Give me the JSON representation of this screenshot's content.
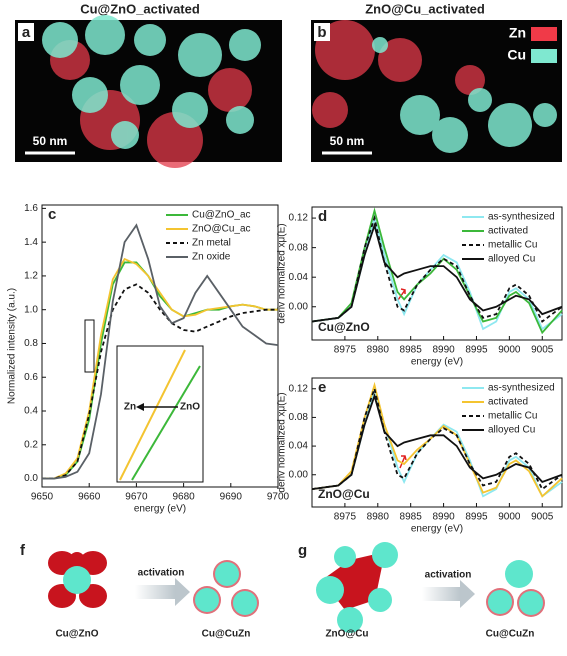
{
  "images": [
    {
      "label": "a",
      "title": "Cu@ZnO_activated",
      "scale_bar": "50 nm"
    },
    {
      "label": "b",
      "title": "ZnO@Cu_activated",
      "scale_bar": "50 nm",
      "legend": [
        {
          "name": "Zn",
          "color": "#f03a48"
        },
        {
          "name": "Cu",
          "color": "#7fe8d0"
        }
      ]
    }
  ],
  "chart_data": [
    {
      "type": "line",
      "panel_label": "c",
      "x_label": "energy (eV)",
      "y_label": "Normalized intensity (a.u.)",
      "x": [
        9650,
        9652.5,
        9655,
        9657.5,
        9660,
        9662.5,
        9665,
        9667.5,
        9670,
        9672.5,
        9675,
        9677.5,
        9680,
        9682.5,
        9685,
        9687.5,
        9690,
        9692.5,
        9695,
        9697.5,
        9700
      ],
      "xlim": [
        9650,
        9700
      ],
      "xticks": [
        9650,
        9660,
        9670,
        9680,
        9690,
        9700
      ],
      "ylim": [
        -0.05,
        1.62
      ],
      "yticks": [
        {
          "value": 0,
          "label": "0.0"
        },
        {
          "value": 0.2,
          "label": "0.2"
        },
        {
          "value": 0.4,
          "label": "0.4"
        },
        {
          "value": 0.6,
          "label": "0.6"
        },
        {
          "value": 0.8,
          "label": "0.8"
        },
        {
          "value": 1,
          "label": "1.0"
        },
        {
          "value": 1.2,
          "label": "1.2"
        },
        {
          "value": 1.4,
          "label": "1.4"
        },
        {
          "value": 1.6,
          "label": "1.6"
        }
      ],
      "inset_labels": [
        "Zn",
        "ZnO"
      ],
      "series": [
        {
          "name": "Cu@ZnO_ac",
          "color": "#3cb83a",
          "style": "solid",
          "values": [
            0,
            0,
            0.02,
            0.1,
            0.35,
            0.8,
            1.15,
            1.28,
            1.28,
            1.2,
            1.08,
            1.0,
            0.96,
            0.98,
            1.0,
            1.0,
            1.02,
            1.03,
            1.02,
            1.0,
            1.0
          ]
        },
        {
          "name": "ZnO@Cu_ac",
          "color": "#f4c430",
          "style": "solid",
          "values": [
            0,
            0,
            0.03,
            0.12,
            0.4,
            0.85,
            1.18,
            1.3,
            1.27,
            1.2,
            1.1,
            1.0,
            0.96,
            0.97,
            1.0,
            1.01,
            1.02,
            1.03,
            1.02,
            1.0,
            1.0
          ]
        },
        {
          "name": "Zn metal",
          "color": "#111111",
          "style": "dashed",
          "values": [
            0,
            0,
            0.02,
            0.1,
            0.38,
            0.75,
            1.0,
            1.12,
            1.15,
            1.1,
            1.0,
            0.92,
            0.88,
            0.87,
            0.9,
            0.93,
            0.96,
            0.98,
            0.99,
            1.0,
            1.0
          ]
        },
        {
          "name": "Zn oxide",
          "color": "#5a6066",
          "style": "solid",
          "values": [
            0,
            0,
            0.01,
            0.04,
            0.15,
            0.5,
            1.05,
            1.4,
            1.5,
            1.3,
            1.02,
            0.92,
            0.95,
            1.1,
            1.2,
            1.1,
            1.0,
            0.9,
            0.85,
            0.8,
            0.79
          ]
        }
      ]
    },
    {
      "type": "line",
      "panel_label": "d",
      "annotation": "Cu@ZnO",
      "x_label": "energy (eV)",
      "y_label": "deriv normalized xμ(E)",
      "x": [
        8970,
        8974,
        8976,
        8978,
        8979.5,
        8981,
        8983,
        8984,
        8986,
        8988,
        8990,
        8992,
        8994,
        8996,
        8998,
        9000,
        9001,
        9003,
        9005,
        9008
      ],
      "xlim": [
        8970,
        9008
      ],
      "xticks": [
        8975,
        8980,
        8985,
        8990,
        8995,
        9000,
        9005
      ],
      "ylim": [
        -0.045,
        0.135
      ],
      "yticks": [
        {
          "value": 0,
          "label": "0.00"
        },
        {
          "value": 0.04,
          "label": "0.04"
        },
        {
          "value": 0.08,
          "label": "0.08"
        },
        {
          "value": 0.12,
          "label": "0.12"
        }
      ],
      "series": [
        {
          "name": "as-synthesized",
          "color": "#8ee8f0",
          "style": "solid",
          "values": [
            -0.02,
            -0.015,
            0.0,
            0.07,
            0.12,
            0.07,
            0.01,
            -0.01,
            0.03,
            0.05,
            0.07,
            0.06,
            0.02,
            -0.03,
            -0.02,
            0.02,
            0.025,
            0.01,
            -0.03,
            -0.01
          ]
        },
        {
          "name": "activated",
          "color": "#3cb83a",
          "style": "solid",
          "values": [
            -0.02,
            -0.015,
            0.005,
            0.08,
            0.13,
            0.08,
            0.02,
            0.01,
            0.03,
            0.045,
            0.065,
            0.05,
            0.015,
            -0.02,
            -0.015,
            0.015,
            0.02,
            0.005,
            -0.035,
            -0.005
          ]
        },
        {
          "name": "metallic Cu",
          "color": "#111111",
          "style": "dashed",
          "values": [
            -0.02,
            -0.015,
            0.0,
            0.08,
            0.12,
            0.06,
            0.0,
            -0.005,
            0.03,
            0.05,
            0.065,
            0.055,
            0.015,
            -0.015,
            -0.01,
            0.025,
            0.03,
            0.015,
            -0.02,
            0.0
          ]
        },
        {
          "name": "alloyed Cu",
          "color": "#111111",
          "style": "solid",
          "values": [
            -0.02,
            -0.015,
            0.0,
            0.07,
            0.11,
            0.06,
            0.04,
            0.045,
            0.05,
            0.055,
            0.055,
            0.04,
            0.01,
            -0.005,
            0.0,
            0.01,
            0.015,
            0.01,
            -0.01,
            0.0
          ]
        }
      ]
    },
    {
      "type": "line",
      "panel_label": "e",
      "annotation": "ZnO@Cu",
      "x_label": "energy (eV)",
      "y_label": "deriv normalized xμ(E)",
      "x": [
        8970,
        8974,
        8976,
        8978,
        8979.5,
        8981,
        8983,
        8984,
        8986,
        8988,
        8990,
        8992,
        8994,
        8996,
        8998,
        9000,
        9001,
        9003,
        9005,
        9008
      ],
      "xlim": [
        8970,
        9008
      ],
      "xticks": [
        8975,
        8980,
        8985,
        8990,
        8995,
        9000,
        9005
      ],
      "ylim": [
        -0.045,
        0.135
      ],
      "yticks": [
        {
          "value": 0,
          "label": "0.00"
        },
        {
          "value": 0.04,
          "label": "0.04"
        },
        {
          "value": 0.08,
          "label": "0.08"
        },
        {
          "value": 0.12,
          "label": "0.12"
        }
      ],
      "series": [
        {
          "name": "as-synthesized",
          "color": "#8ee8f0",
          "style": "solid",
          "values": [
            -0.02,
            -0.015,
            0.0,
            0.07,
            0.12,
            0.07,
            0.01,
            -0.01,
            0.03,
            0.05,
            0.07,
            0.06,
            0.02,
            -0.03,
            -0.02,
            0.02,
            0.025,
            0.01,
            -0.03,
            -0.01
          ]
        },
        {
          "name": "activated",
          "color": "#f4c430",
          "style": "solid",
          "values": [
            -0.02,
            -0.015,
            0.005,
            0.08,
            0.125,
            0.07,
            0.02,
            0.015,
            0.035,
            0.05,
            0.068,
            0.055,
            0.015,
            -0.025,
            -0.018,
            0.015,
            0.02,
            0.005,
            -0.03,
            -0.005
          ]
        },
        {
          "name": "metallic Cu",
          "color": "#111111",
          "style": "dashed",
          "values": [
            -0.02,
            -0.015,
            0.0,
            0.08,
            0.12,
            0.06,
            0.0,
            -0.005,
            0.03,
            0.05,
            0.065,
            0.055,
            0.015,
            -0.015,
            -0.01,
            0.025,
            0.03,
            0.015,
            -0.02,
            0.0
          ]
        },
        {
          "name": "alloyed Cu",
          "color": "#111111",
          "style": "solid",
          "values": [
            -0.02,
            -0.015,
            0.0,
            0.07,
            0.11,
            0.06,
            0.04,
            0.045,
            0.05,
            0.055,
            0.055,
            0.04,
            0.01,
            -0.005,
            0.0,
            0.01,
            0.015,
            0.01,
            -0.01,
            0.0
          ]
        }
      ]
    }
  ],
  "schematics": [
    {
      "label": "f",
      "arrow_text": "activation",
      "left": "Cu@ZnO",
      "right": "Cu@CuZn"
    },
    {
      "label": "g",
      "arrow_text": "activation",
      "left": "ZnO@Cu",
      "right": "Cu@CuZn"
    }
  ]
}
